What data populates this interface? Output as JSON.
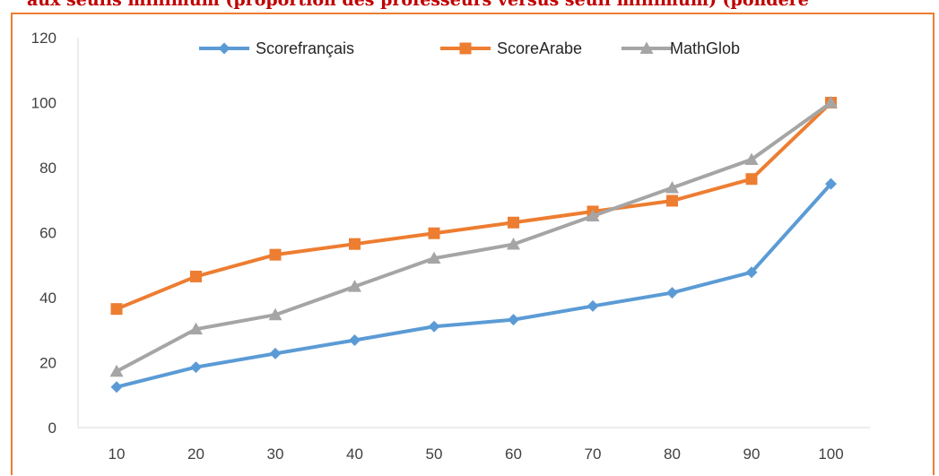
{
  "header": {
    "title_fragment": "aux seuils minimum (proportion des professeurs versus seuil minimum) (pondéré"
  },
  "chart_data": {
    "type": "line",
    "x": [
      10,
      20,
      30,
      40,
      50,
      60,
      70,
      80,
      90,
      100
    ],
    "ylim": [
      0,
      120
    ],
    "yticks": [
      0,
      20,
      40,
      60,
      80,
      100,
      120
    ],
    "grid": false,
    "legend": "top-center",
    "series": [
      {
        "name": "Scorefrançais",
        "color": "#5b9bd5",
        "marker": "diamond",
        "values": [
          12.5,
          18.6,
          22.8,
          26.9,
          31.1,
          33.2,
          37.4,
          41.5,
          47.8,
          75
        ]
      },
      {
        "name": "ScoreArabe",
        "color": "#ed7d31",
        "marker": "square",
        "values": [
          36.5,
          46.5,
          53.2,
          56.5,
          59.8,
          63.1,
          66.5,
          69.8,
          76.5,
          100
        ]
      },
      {
        "name": "MathGlob",
        "color": "#a5a5a5",
        "marker": "triangle",
        "values": [
          17.3,
          30.3,
          34.7,
          43.4,
          52.1,
          56.4,
          65.1,
          73.8,
          82.5,
          100
        ]
      }
    ]
  }
}
